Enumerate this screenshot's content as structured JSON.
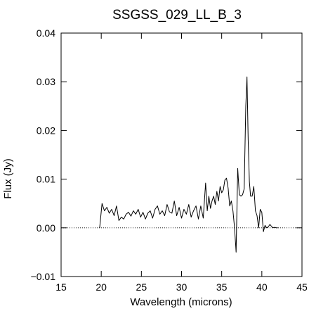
{
  "chart_data": {
    "type": "line",
    "title": "SSGSS_029_LL_B_3",
    "xlabel": "Wavelength (microns)",
    "ylabel": "Flux (Jy)",
    "xlim": [
      15,
      45
    ],
    "ylim": [
      -0.01,
      0.04
    ],
    "xticks": [
      15,
      20,
      25,
      30,
      35,
      40,
      45
    ],
    "yticks": [
      -0.01,
      0.0,
      0.01,
      0.02,
      0.03,
      0.04
    ],
    "xtick_labels": [
      "15",
      "20",
      "25",
      "30",
      "35",
      "40",
      "45"
    ],
    "ytick_labels": [
      "−0.01",
      "0.00",
      "0.01",
      "0.02",
      "0.03",
      "0.04"
    ],
    "zero_line": {
      "y": 0.0,
      "style": "dotted"
    },
    "series": [
      {
        "x": [
          19.8,
          20.1,
          20.4,
          20.7,
          21.0,
          21.3,
          21.6,
          21.9,
          22.2,
          22.5,
          22.8,
          23.1,
          23.4,
          23.7,
          24.0,
          24.3,
          24.6,
          24.9,
          25.2,
          25.5,
          25.8,
          26.1,
          26.4,
          26.7,
          27.0,
          27.3,
          27.6,
          27.9,
          28.2,
          28.5,
          28.8,
          29.1,
          29.4,
          29.7,
          30.0,
          30.3,
          30.6,
          30.9,
          31.2,
          31.5,
          31.8,
          32.1,
          32.4,
          32.7,
          33.0,
          33.2,
          33.4,
          33.6,
          33.8,
          34.0,
          34.2,
          34.4,
          34.6,
          34.8,
          35.0,
          35.2,
          35.4,
          35.6,
          35.8,
          36.0,
          36.2,
          36.4,
          36.6,
          36.8,
          37.0,
          37.2,
          37.4,
          37.6,
          37.8,
          38.0,
          38.15,
          38.3,
          38.45,
          38.6,
          38.8,
          39.0,
          39.2,
          39.4,
          39.6,
          39.8,
          40.0,
          40.2,
          40.4,
          40.6,
          40.8,
          41.0,
          41.2,
          41.4,
          41.6,
          41.8,
          42.0
        ],
        "y": [
          0.0,
          0.005,
          0.0035,
          0.0042,
          0.003,
          0.0038,
          0.0025,
          0.0045,
          0.0015,
          0.0022,
          0.0018,
          0.0028,
          0.0032,
          0.0024,
          0.0035,
          0.0028,
          0.0038,
          0.0022,
          0.0032,
          0.0018,
          0.003,
          0.0035,
          0.002,
          0.0038,
          0.0045,
          0.0028,
          0.0035,
          0.0025,
          0.0048,
          0.0033,
          0.003,
          0.0055,
          0.0025,
          0.0042,
          0.002,
          0.0038,
          0.0028,
          0.0048,
          0.0022,
          0.0035,
          0.0045,
          0.0018,
          0.0045,
          0.002,
          0.0092,
          0.0035,
          0.0065,
          0.004,
          0.0055,
          0.0065,
          0.0048,
          0.0075,
          0.0055,
          0.0085,
          0.0072,
          0.0078,
          0.0098,
          0.0102,
          0.0082,
          0.0045,
          0.0055,
          0.0035,
          0.0,
          -0.005,
          0.0122,
          0.0068,
          0.0065,
          0.0068,
          0.008,
          0.025,
          0.031,
          0.018,
          0.0095,
          0.0065,
          0.0065,
          0.0085,
          0.0035,
          0.0025,
          0.0,
          0.0038,
          0.0032,
          -0.0008,
          0.0005,
          0.0,
          0.0002,
          0.0007,
          0.0003,
          0.0,
          0.0001,
          0.0,
          0.0
        ]
      }
    ]
  }
}
